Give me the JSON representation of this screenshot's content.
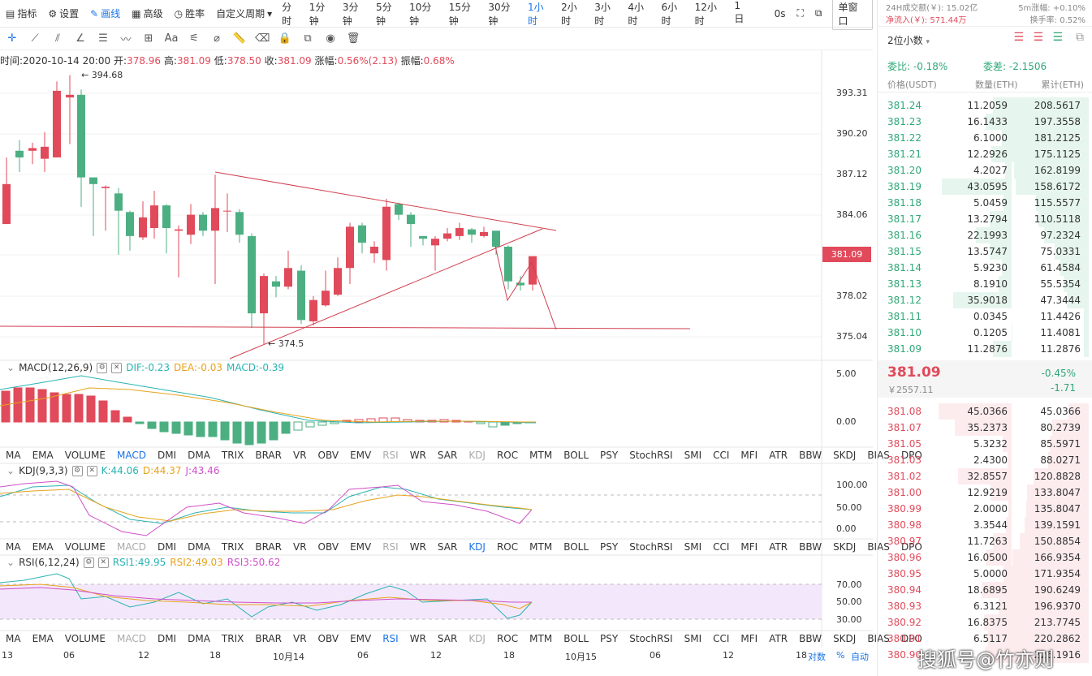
{
  "topbar": {
    "items": [
      "指标",
      "设置",
      "画线",
      "高级",
      "胜率"
    ],
    "custom_period": "自定义周期",
    "periods": [
      "分时",
      "1分钟",
      "3分钟",
      "5分钟",
      "10分钟",
      "15分钟",
      "30分钟",
      "1小时",
      "2小时",
      "3小时",
      "4小时",
      "6小时",
      "12小时",
      "1日"
    ],
    "active_period": "1小时",
    "timer": "0s",
    "window_btn": "单窗口"
  },
  "ohlc": {
    "time_label": "时间:",
    "time": "2020-10-14 20:00",
    "open_label": "开:",
    "open": "378.96",
    "high_label": "高:",
    "high": "381.09",
    "low_label": "低:",
    "low": "378.50",
    "close_label": "收:",
    "close": "381.09",
    "chg_label": "涨幅:",
    "chg": "0.56%(2.13)",
    "amp_label": "振幅:",
    "amp": "0.68%"
  },
  "main": {
    "high_mark": "394.68",
    "low_mark": "374.5",
    "current_price": "381.09",
    "yticks": [
      "393.31",
      "390.20",
      "387.12",
      "384.06",
      "381.09",
      "378.02",
      "375.04"
    ]
  },
  "macd": {
    "title": "MACD(12,26,9)",
    "dif": "DIF:-0.23",
    "dea": "DEA:-0.03",
    "macd": "MACD:-0.39",
    "yticks": [
      "5.00",
      "0.00"
    ]
  },
  "kdj": {
    "title": "KDJ(9,3,3)",
    "k": "K:44.06",
    "d": "D:44.37",
    "j": "J:43.46",
    "yticks": [
      "100.00",
      "50.00",
      "20.00",
      "0.00"
    ]
  },
  "rsi": {
    "title": "RSI(6,12,24)",
    "rsi1": "RSI1:49.95",
    "rsi2": "RSI2:49.03",
    "rsi3": "RSI3:50.62",
    "yticks": [
      "70.00",
      "50.00",
      "30.00"
    ]
  },
  "indicator_tabs": [
    "MA",
    "EMA",
    "VOLUME",
    "MACD",
    "DMI",
    "DMA",
    "TRIX",
    "BRAR",
    "VR",
    "OBV",
    "EMV",
    "RSI",
    "WR",
    "SAR",
    "KDJ",
    "ROC",
    "MTM",
    "BOLL",
    "PSY",
    "StochRSI",
    "SMI",
    "CCI",
    "MFI",
    "ATR",
    "BBW",
    "SKDJ",
    "BIAS",
    "DPO"
  ],
  "xaxis": {
    "labels": [
      "13",
      "06",
      "12",
      "18",
      "10月14",
      "06",
      "12",
      "18",
      "10月15",
      "06",
      "12",
      "18"
    ],
    "right": [
      "对数",
      "%",
      "自动"
    ]
  },
  "right": {
    "vol24": "24H成交额(￥): 15.02亿",
    "chg5m": "5m涨幅: +0.10%",
    "netin": "净流入(￥): 571.44万",
    "turnover": "换手率: 0.52%",
    "decimals": "2位小数",
    "weibi": "委比: -0.18%",
    "weicha": "委差: -2.1506",
    "headers": [
      "价格(USDT)",
      "数量(ETH)",
      "累计(ETH)"
    ],
    "asks": [
      [
        "381.24",
        "11.2059",
        "208.5617"
      ],
      [
        "381.23",
        "16.1433",
        "197.3558"
      ],
      [
        "381.22",
        "6.1000",
        "181.2125"
      ],
      [
        "381.21",
        "12.2926",
        "175.1125"
      ],
      [
        "381.20",
        "4.2027",
        "162.8199"
      ],
      [
        "381.19",
        "43.0595",
        "158.6172"
      ],
      [
        "381.18",
        "5.0459",
        "115.5577"
      ],
      [
        "381.17",
        "13.2794",
        "110.5118"
      ],
      [
        "381.16",
        "22.1993",
        "97.2324"
      ],
      [
        "381.15",
        "13.5747",
        "75.0331"
      ],
      [
        "381.14",
        "5.9230",
        "61.4584"
      ],
      [
        "381.13",
        "8.1910",
        "55.5354"
      ],
      [
        "381.12",
        "35.9018",
        "47.3444"
      ],
      [
        "381.11",
        "0.0345",
        "11.4426"
      ],
      [
        "381.10",
        "0.1205",
        "11.4081"
      ],
      [
        "381.09",
        "11.2876",
        "11.2876"
      ]
    ],
    "last_price": "381.09",
    "last_cny": "￥2557.11",
    "last_pct": "-0.45%",
    "last_chg": "-1.71",
    "bids": [
      [
        "381.08",
        "45.0366",
        "45.0366"
      ],
      [
        "381.07",
        "35.2373",
        "80.2739"
      ],
      [
        "381.05",
        "5.3232",
        "85.5971"
      ],
      [
        "381.03",
        "2.4300",
        "88.0271"
      ],
      [
        "381.02",
        "32.8557",
        "120.8828"
      ],
      [
        "381.00",
        "12.9219",
        "133.8047"
      ],
      [
        "380.99",
        "2.0000",
        "135.8047"
      ],
      [
        "380.98",
        "3.3544",
        "139.1591"
      ],
      [
        "380.97",
        "11.7263",
        "150.8854"
      ],
      [
        "380.96",
        "16.0500",
        "166.9354"
      ],
      [
        "380.95",
        "5.0000",
        "171.9354"
      ],
      [
        "380.94",
        "18.6895",
        "190.6249"
      ],
      [
        "380.93",
        "6.3121",
        "196.9370"
      ],
      [
        "380.92",
        "16.8375",
        "213.7745"
      ],
      [
        "380.91",
        "6.5117",
        "220.2862"
      ],
      [
        "380.90",
        "",
        "226.1916"
      ]
    ]
  },
  "watermark": "搜狐号@竹亦则"
}
